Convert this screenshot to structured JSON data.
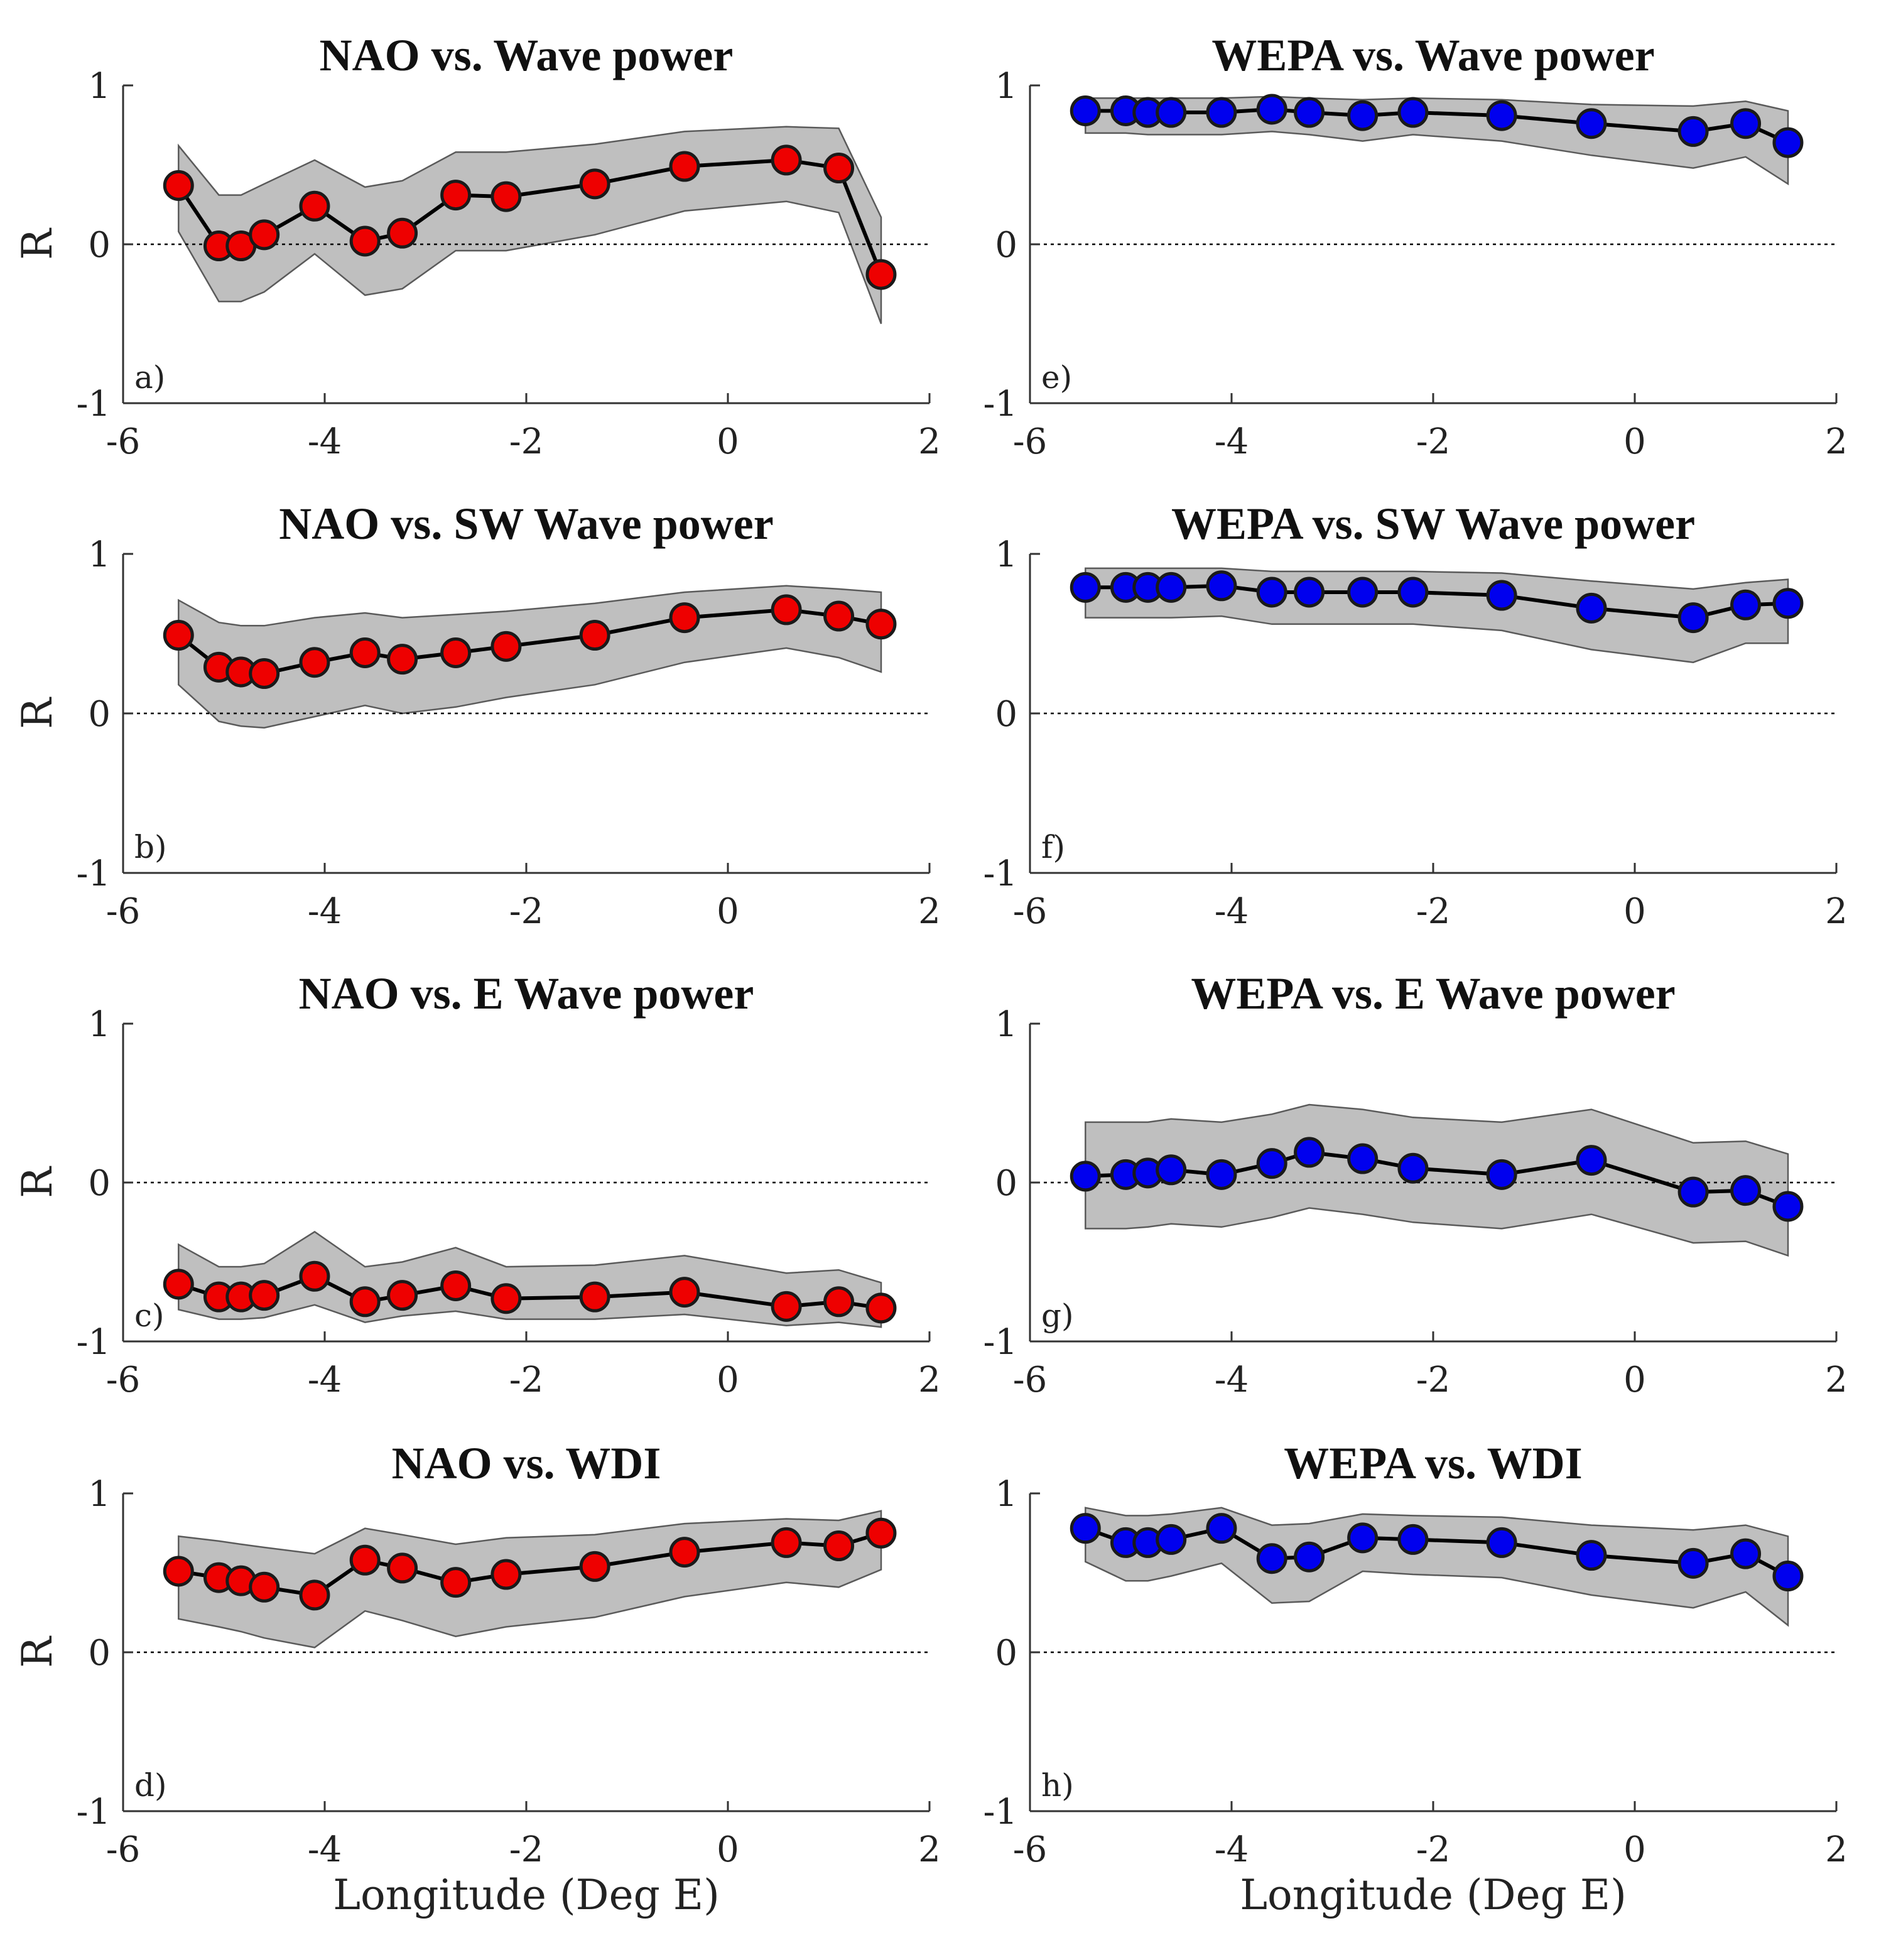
{
  "figure": {
    "xlabel": "Longitude (Deg E)",
    "ylabel": "R",
    "colors": {
      "nao_marker": "#ee0000",
      "wepa_marker": "#0000ee",
      "band": "#bfbfbf",
      "band_edge": "#5a5a5a",
      "line": "#000000",
      "zero_line": "#000000"
    }
  },
  "chart_data": [
    {
      "panel": "a)",
      "type": "line",
      "title": "NAO vs. Wave power",
      "xlabel": "",
      "ylabel": "R",
      "xlim": [
        -6,
        2
      ],
      "ylim": [
        -1,
        1
      ],
      "xticks": [
        "-6",
        "-4",
        "-2",
        "0",
        "2"
      ],
      "yticks": [
        "-1",
        "0",
        "1"
      ],
      "marker_color": "#ee0000",
      "x": [
        -5.45,
        -5.05,
        -4.83,
        -4.6,
        -4.1,
        -3.6,
        -3.23,
        -2.7,
        -2.2,
        -1.32,
        -0.43,
        0.58,
        1.1,
        1.52
      ],
      "y": [
        0.37,
        -0.01,
        -0.01,
        0.06,
        0.24,
        0.02,
        0.07,
        0.31,
        0.3,
        0.38,
        0.49,
        0.53,
        0.48,
        -0.19
      ],
      "band_upper": [
        0.62,
        0.31,
        0.31,
        0.38,
        0.53,
        0.36,
        0.4,
        0.58,
        0.58,
        0.63,
        0.71,
        0.74,
        0.73,
        0.17
      ],
      "band_lower": [
        0.08,
        -0.36,
        -0.36,
        -0.3,
        -0.06,
        -0.32,
        -0.28,
        -0.04,
        -0.04,
        0.06,
        0.21,
        0.27,
        0.2,
        -0.5
      ]
    },
    {
      "panel": "b)",
      "type": "line",
      "title": "NAO vs. SW Wave power",
      "xlabel": "",
      "ylabel": "R",
      "xlim": [
        -6,
        2
      ],
      "ylim": [
        -1,
        1
      ],
      "xticks": [
        "-6",
        "-4",
        "-2",
        "0",
        "2"
      ],
      "yticks": [
        "-1",
        "0",
        "1"
      ],
      "marker_color": "#ee0000",
      "x": [
        -5.45,
        -5.05,
        -4.83,
        -4.6,
        -4.1,
        -3.6,
        -3.23,
        -2.7,
        -2.2,
        -1.32,
        -0.43,
        0.58,
        1.1,
        1.52
      ],
      "y": [
        0.49,
        0.29,
        0.26,
        0.25,
        0.32,
        0.38,
        0.34,
        0.38,
        0.42,
        0.49,
        0.6,
        0.65,
        0.61,
        0.56
      ],
      "band_upper": [
        0.71,
        0.57,
        0.55,
        0.55,
        0.6,
        0.63,
        0.6,
        0.62,
        0.64,
        0.69,
        0.76,
        0.8,
        0.78,
        0.76
      ],
      "band_lower": [
        0.18,
        -0.05,
        -0.08,
        -0.09,
        -0.02,
        0.05,
        0.0,
        0.04,
        0.1,
        0.18,
        0.32,
        0.41,
        0.35,
        0.26
      ]
    },
    {
      "panel": "c)",
      "type": "line",
      "title": "NAO vs. E Wave power",
      "xlabel": "",
      "ylabel": "R",
      "xlim": [
        -6,
        2
      ],
      "ylim": [
        -1,
        1
      ],
      "xticks": [
        "-6",
        "-4",
        "-2",
        "0",
        "2"
      ],
      "yticks": [
        "-1",
        "0",
        "1"
      ],
      "marker_color": "#ee0000",
      "x": [
        -5.45,
        -5.05,
        -4.83,
        -4.6,
        -4.1,
        -3.6,
        -3.23,
        -2.7,
        -2.2,
        -1.32,
        -0.43,
        0.58,
        1.1,
        1.52
      ],
      "y": [
        -0.64,
        -0.72,
        -0.72,
        -0.71,
        -0.59,
        -0.75,
        -0.71,
        -0.65,
        -0.73,
        -0.72,
        -0.69,
        -0.78,
        -0.75,
        -0.79
      ],
      "band_upper": [
        -0.39,
        -0.53,
        -0.53,
        -0.51,
        -0.31,
        -0.53,
        -0.5,
        -0.41,
        -0.53,
        -0.52,
        -0.46,
        -0.57,
        -0.55,
        -0.63
      ],
      "band_lower": [
        -0.8,
        -0.86,
        -0.86,
        -0.85,
        -0.77,
        -0.88,
        -0.84,
        -0.81,
        -0.86,
        -0.86,
        -0.83,
        -0.9,
        -0.88,
        -0.91
      ]
    },
    {
      "panel": "d)",
      "type": "line",
      "title": "NAO vs.  WDI",
      "xlabel": "Longitude (Deg E)",
      "ylabel": "R",
      "xlim": [
        -6,
        2
      ],
      "ylim": [
        -1,
        1
      ],
      "xticks": [
        "-6",
        "-4",
        "-2",
        "0",
        "2"
      ],
      "yticks": [
        "-1",
        "0",
        "1"
      ],
      "marker_color": "#ee0000",
      "x": [
        -5.45,
        -5.05,
        -4.83,
        -4.6,
        -4.1,
        -3.6,
        -3.23,
        -2.7,
        -2.2,
        -1.32,
        -0.43,
        0.58,
        1.1,
        1.52
      ],
      "y": [
        0.51,
        0.47,
        0.45,
        0.41,
        0.36,
        0.58,
        0.53,
        0.44,
        0.49,
        0.54,
        0.63,
        0.69,
        0.67,
        0.75
      ],
      "band_upper": [
        0.73,
        0.7,
        0.68,
        0.66,
        0.62,
        0.78,
        0.74,
        0.68,
        0.72,
        0.74,
        0.81,
        0.84,
        0.83,
        0.89
      ],
      "band_lower": [
        0.21,
        0.16,
        0.13,
        0.09,
        0.03,
        0.26,
        0.2,
        0.1,
        0.16,
        0.22,
        0.35,
        0.44,
        0.41,
        0.52
      ]
    },
    {
      "panel": "e)",
      "type": "line",
      "title": "WEPA vs. Wave power",
      "xlabel": "",
      "ylabel": "",
      "xlim": [
        -6,
        2
      ],
      "ylim": [
        -1,
        1
      ],
      "xticks": [
        "-6",
        "-4",
        "-2",
        "0",
        "2"
      ],
      "yticks": [
        "-1",
        "0",
        "1"
      ],
      "marker_color": "#0000ee",
      "x": [
        -5.45,
        -5.05,
        -4.83,
        -4.6,
        -4.1,
        -3.6,
        -3.23,
        -2.7,
        -2.2,
        -1.32,
        -0.43,
        0.58,
        1.1,
        1.52
      ],
      "y": [
        0.84,
        0.84,
        0.83,
        0.83,
        0.83,
        0.85,
        0.83,
        0.81,
        0.83,
        0.81,
        0.76,
        0.71,
        0.76,
        0.64
      ],
      "band_upper": [
        0.92,
        0.92,
        0.92,
        0.92,
        0.92,
        0.93,
        0.92,
        0.91,
        0.92,
        0.91,
        0.88,
        0.87,
        0.9,
        0.84
      ],
      "band_lower": [
        0.7,
        0.7,
        0.69,
        0.69,
        0.69,
        0.71,
        0.69,
        0.65,
        0.69,
        0.65,
        0.56,
        0.48,
        0.55,
        0.38
      ]
    },
    {
      "panel": "f)",
      "type": "line",
      "title": "WEPA vs. SW Wave power",
      "xlabel": "",
      "ylabel": "",
      "xlim": [
        -6,
        2
      ],
      "ylim": [
        -1,
        1
      ],
      "xticks": [
        "-6",
        "-4",
        "-2",
        "0",
        "2"
      ],
      "yticks": [
        "-1",
        "0",
        "1"
      ],
      "marker_color": "#0000ee",
      "x": [
        -5.45,
        -5.05,
        -4.83,
        -4.6,
        -4.1,
        -3.6,
        -3.23,
        -2.7,
        -2.2,
        -1.32,
        -0.43,
        0.58,
        1.1,
        1.52
      ],
      "y": [
        0.79,
        0.79,
        0.79,
        0.79,
        0.8,
        0.76,
        0.76,
        0.76,
        0.76,
        0.74,
        0.66,
        0.6,
        0.68,
        0.69
      ],
      "band_upper": [
        0.91,
        0.91,
        0.91,
        0.91,
        0.91,
        0.89,
        0.89,
        0.89,
        0.89,
        0.88,
        0.83,
        0.78,
        0.82,
        0.84
      ],
      "band_lower": [
        0.6,
        0.6,
        0.6,
        0.6,
        0.61,
        0.56,
        0.56,
        0.56,
        0.56,
        0.52,
        0.4,
        0.32,
        0.44,
        0.44
      ]
    },
    {
      "panel": "g)",
      "type": "line",
      "title": "WEPA vs. E Wave power",
      "xlabel": "",
      "ylabel": "",
      "xlim": [
        -6,
        2
      ],
      "ylim": [
        -1,
        1
      ],
      "xticks": [
        "-6",
        "-4",
        "-2",
        "0",
        "2"
      ],
      "yticks": [
        "-1",
        "0",
        "1"
      ],
      "marker_color": "#0000ee",
      "x": [
        -5.45,
        -5.05,
        -4.83,
        -4.6,
        -4.1,
        -3.6,
        -3.23,
        -2.7,
        -2.2,
        -1.32,
        -0.43,
        0.58,
        1.1,
        1.52
      ],
      "y": [
        0.04,
        0.05,
        0.06,
        0.08,
        0.05,
        0.12,
        0.19,
        0.15,
        0.09,
        0.05,
        0.14,
        -0.06,
        -0.05,
        -0.15
      ],
      "band_upper": [
        0.38,
        0.38,
        0.38,
        0.4,
        0.38,
        0.43,
        0.49,
        0.46,
        0.41,
        0.38,
        0.46,
        0.25,
        0.26,
        0.18
      ],
      "band_lower": [
        -0.29,
        -0.29,
        -0.28,
        -0.26,
        -0.28,
        -0.22,
        -0.16,
        -0.2,
        -0.25,
        -0.29,
        -0.2,
        -0.38,
        -0.37,
        -0.46
      ]
    },
    {
      "panel": "h)",
      "type": "line",
      "title": "WEPA vs. WDI",
      "xlabel": "Longitude (Deg E)",
      "ylabel": "",
      "xlim": [
        -6,
        2
      ],
      "ylim": [
        -1,
        1
      ],
      "xticks": [
        "-6",
        "-4",
        "-2",
        "0",
        "2"
      ],
      "yticks": [
        "-1",
        "0",
        "1"
      ],
      "marker_color": "#0000ee",
      "x": [
        -5.45,
        -5.05,
        -4.83,
        -4.6,
        -4.1,
        -3.6,
        -3.23,
        -2.7,
        -2.2,
        -1.32,
        -0.43,
        0.58,
        1.1,
        1.52
      ],
      "y": [
        0.78,
        0.69,
        0.69,
        0.71,
        0.78,
        0.59,
        0.6,
        0.72,
        0.71,
        0.69,
        0.61,
        0.56,
        0.62,
        0.48
      ],
      "band_upper": [
        0.91,
        0.86,
        0.86,
        0.87,
        0.91,
        0.8,
        0.81,
        0.87,
        0.86,
        0.85,
        0.8,
        0.77,
        0.8,
        0.73
      ],
      "band_lower": [
        0.57,
        0.45,
        0.45,
        0.48,
        0.56,
        0.31,
        0.32,
        0.51,
        0.49,
        0.47,
        0.36,
        0.28,
        0.38,
        0.17
      ]
    }
  ]
}
